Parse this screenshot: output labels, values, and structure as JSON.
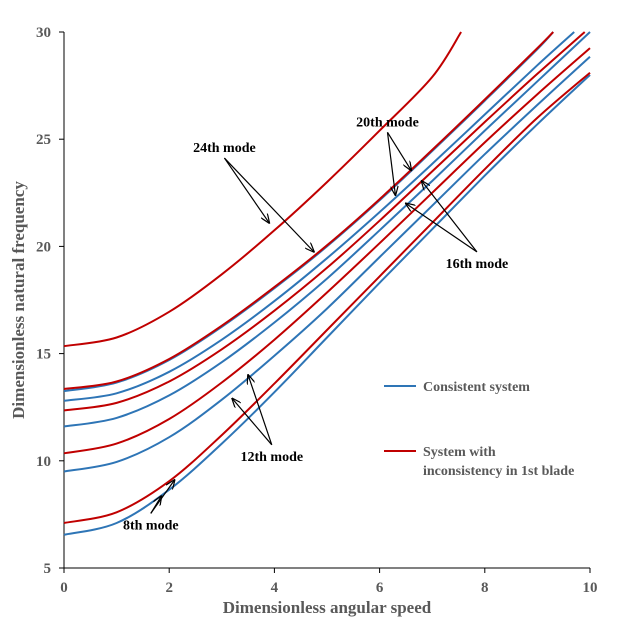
{
  "chart_data": {
    "type": "line",
    "xlabel": "Dimensionless angular speed",
    "ylabel": "Dimensionless natural frequency",
    "xlim": [
      0,
      10
    ],
    "ylim": [
      5,
      30
    ],
    "x_ticks": [
      0,
      2,
      4,
      6,
      8,
      10
    ],
    "y_ticks": [
      5,
      10,
      15,
      20,
      25,
      30
    ],
    "grid": false,
    "legend_position": "right",
    "colors": {
      "Consistent system": "#2e75b6",
      "System with inconsistency in 1st blade": "#c00000"
    },
    "series": [
      {
        "name": "Consistent system",
        "mode": "8th",
        "x": [
          0,
          1,
          2,
          3,
          4,
          5,
          6,
          7,
          8,
          9,
          10
        ],
        "y": [
          6.55,
          7.1,
          8.65,
          10.8,
          13.2,
          15.75,
          18.3,
          20.8,
          23.3,
          25.7,
          28.0
        ]
      },
      {
        "name": "System with inconsistency in 1st blade",
        "mode": "8th",
        "x": [
          0,
          1,
          2,
          3,
          4,
          5,
          6,
          7,
          8,
          9,
          10
        ],
        "y": [
          7.1,
          7.6,
          9.05,
          11.2,
          13.6,
          16.1,
          18.6,
          21.1,
          23.6,
          26.0,
          28.1
        ]
      },
      {
        "name": "Consistent system",
        "mode": "12th",
        "x": [
          0,
          1,
          2,
          3,
          4,
          5,
          6,
          7,
          8,
          9,
          10
        ],
        "y": [
          9.5,
          9.95,
          11.1,
          12.85,
          14.9,
          17.1,
          19.5,
          21.9,
          24.3,
          26.6,
          28.85
        ]
      },
      {
        "name": "System with inconsistency in 1st blade",
        "mode": "12th",
        "x": [
          0,
          1,
          2,
          3,
          4,
          5,
          6,
          7,
          8,
          9,
          10
        ],
        "y": [
          10.35,
          10.8,
          11.95,
          13.65,
          15.65,
          17.85,
          20.15,
          22.5,
          24.85,
          27.1,
          29.25
        ]
      },
      {
        "name": "Consistent system",
        "mode": "16th",
        "x": [
          0,
          1,
          2,
          3,
          4,
          5,
          6,
          7,
          8,
          9,
          10
        ],
        "y": [
          11.6,
          12.0,
          13.05,
          14.6,
          16.45,
          18.5,
          20.75,
          23.05,
          25.4,
          27.7,
          30.0
        ]
      },
      {
        "name": "System with inconsistency in 1st blade",
        "mode": "16th",
        "x": [
          0,
          1,
          2,
          3,
          4,
          5,
          6,
          7,
          8,
          9,
          9.9
        ],
        "y": [
          12.35,
          12.7,
          13.7,
          15.2,
          17.0,
          19.0,
          21.2,
          23.5,
          25.8,
          28.05,
          30.0
        ]
      },
      {
        "name": "Consistent system",
        "mode": "20th",
        "x": [
          0,
          1,
          2,
          3,
          4,
          5,
          6,
          7,
          8,
          9,
          9.7
        ],
        "y": [
          12.8,
          13.15,
          14.15,
          15.65,
          17.45,
          19.45,
          21.6,
          23.85,
          26.15,
          28.45,
          30.0
        ]
      },
      {
        "name": "Consistent system",
        "mode": "20th",
        "x": [
          0,
          1,
          2,
          3,
          4,
          5,
          6,
          7,
          8,
          9,
          9.3
        ],
        "y": [
          13.25,
          13.65,
          14.7,
          16.25,
          18.05,
          20.0,
          22.15,
          24.45,
          26.8,
          29.2,
          30.0
        ]
      },
      {
        "name": "System with inconsistency in 1st blade",
        "mode": "20th",
        "x": [
          0,
          1,
          2,
          3,
          4,
          5,
          6,
          7,
          8,
          9,
          9.3
        ],
        "y": [
          13.35,
          13.7,
          14.75,
          16.3,
          18.1,
          20.05,
          22.2,
          24.5,
          26.85,
          29.25,
          30.0
        ]
      },
      {
        "name": "System with inconsistency in 1st blade",
        "mode": "24th",
        "x": [
          0,
          1,
          2,
          3,
          4,
          5,
          6,
          7,
          7.55
        ],
        "y": [
          15.35,
          15.75,
          16.95,
          18.7,
          20.75,
          23.0,
          25.4,
          27.9,
          30.0
        ]
      }
    ],
    "annotations": [
      {
        "text": "24th mode",
        "x": 3.05,
        "y": 24.4,
        "arrows_to": [
          [
            3.9,
            21.1
          ],
          [
            4.75,
            19.75
          ]
        ]
      },
      {
        "text": "20th mode",
        "x": 6.15,
        "y": 25.6,
        "arrows_to": [
          [
            6.3,
            22.4
          ],
          [
            6.6,
            23.55
          ]
        ]
      },
      {
        "text": "16th mode",
        "x": 7.85,
        "y": 19.0,
        "arrows_to": [
          [
            6.5,
            22.0
          ],
          [
            6.8,
            23.05
          ]
        ]
      },
      {
        "text": "12th mode",
        "x": 3.95,
        "y": 10.0,
        "arrows_to": [
          [
            3.2,
            12.9
          ],
          [
            3.5,
            14.0
          ]
        ]
      },
      {
        "text": "8th mode",
        "x": 1.65,
        "y": 6.8,
        "arrows_to": [
          [
            1.85,
            8.35
          ],
          [
            2.1,
            9.1
          ]
        ]
      }
    ]
  }
}
